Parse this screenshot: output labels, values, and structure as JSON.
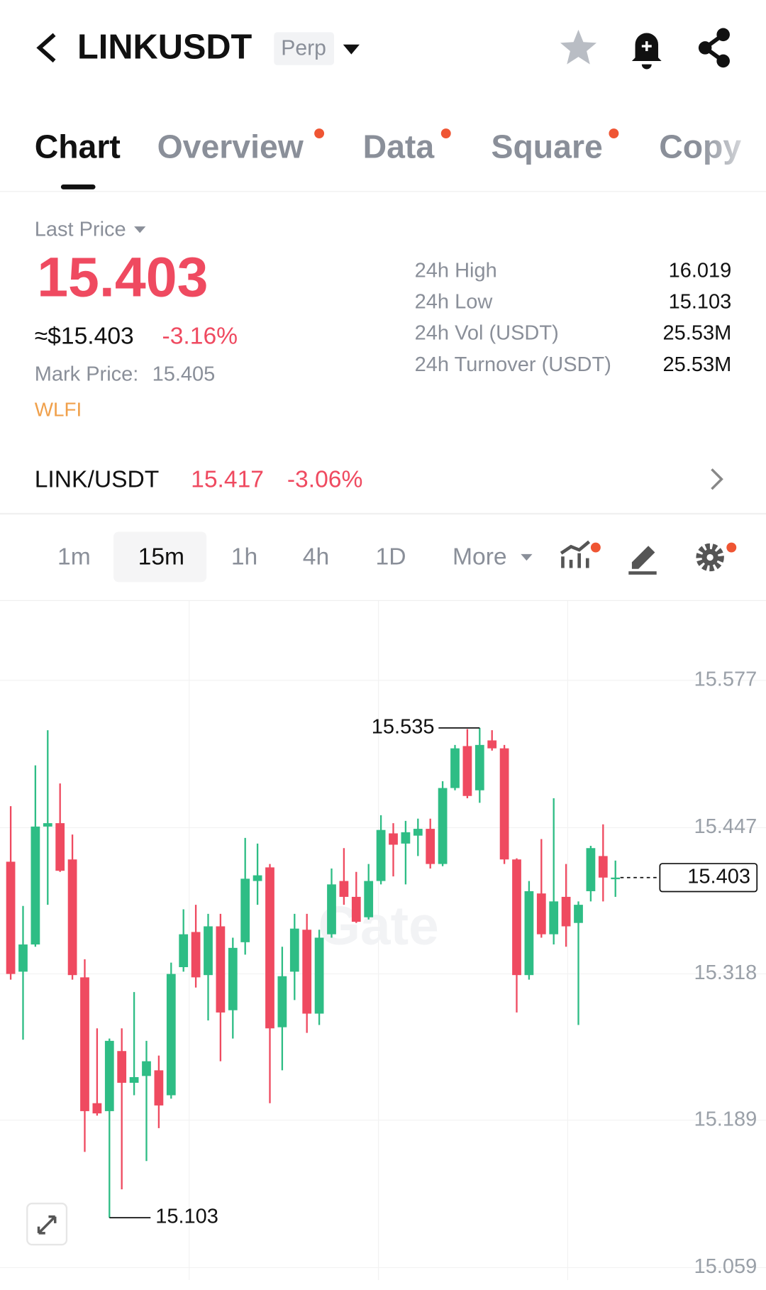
{
  "header": {
    "title": "LINKUSDT",
    "badge": "Perp"
  },
  "tabs": [
    "Chart",
    "Overview",
    "Data",
    "Square",
    "Copy"
  ],
  "price": {
    "label": "Last Price",
    "last": "15.403",
    "usd": "≈$15.403",
    "change": "-3.16%",
    "mark_label": "Mark Price:",
    "mark_value": "15.405",
    "tag": "WLFI"
  },
  "stats": [
    {
      "label": "24h High",
      "value": "16.019"
    },
    {
      "label": "24h Low",
      "value": "15.103"
    },
    {
      "label": "24h Vol (USDT)",
      "value": "25.53M"
    },
    {
      "label": "24h Turnover (USDT)",
      "value": "25.53M"
    }
  ],
  "spot": {
    "pair": "LINK/USDT",
    "price": "15.417",
    "change": "-3.06%"
  },
  "intervals": [
    "1m",
    "15m",
    "1h",
    "4h",
    "1D",
    "More"
  ],
  "chart_data": {
    "type": "candlestick",
    "watermark": "Gate",
    "open": [
      15.417,
      15.32,
      15.344,
      15.448,
      15.451,
      15.419,
      15.315,
      15.204,
      15.197,
      15.25,
      15.222,
      15.228,
      15.233,
      15.211,
      15.324,
      15.355,
      15.317,
      15.36,
      15.286,
      15.346,
      15.4,
      15.412,
      15.271,
      15.32,
      15.357,
      15.283,
      15.353,
      15.4,
      15.386,
      15.368,
      15.4,
      15.442,
      15.433,
      15.44,
      15.446,
      15.415,
      15.482,
      15.519,
      15.48,
      15.524,
      15.517,
      15.419,
      15.317,
      15.389,
      15.353,
      15.386,
      15.363,
      15.391,
      15.422,
      15.402
    ],
    "high": [
      15.466,
      15.378,
      15.502,
      15.533,
      15.486,
      15.441,
      15.331,
      15.27,
      15.261,
      15.27,
      15.302,
      15.259,
      15.246,
      15.328,
      15.375,
      15.379,
      15.371,
      15.371,
      15.35,
      15.438,
      15.433,
      15.415,
      15.342,
      15.371,
      15.371,
      15.357,
      15.411,
      15.429,
      15.408,
      15.415,
      15.458,
      15.451,
      15.453,
      15.455,
      15.455,
      15.488,
      15.52,
      15.534,
      15.535,
      15.533,
      15.52,
      15.42,
      15.4,
      15.437,
      15.473,
      15.415,
      15.382,
      15.431,
      15.45,
      15.418
    ],
    "low": [
      15.313,
      15.26,
      15.342,
      15.379,
      15.408,
      15.313,
      15.161,
      15.193,
      15.103,
      15.128,
      15.211,
      15.153,
      15.182,
      15.208,
      15.32,
      15.306,
      15.277,
      15.241,
      15.261,
      15.335,
      15.379,
      15.204,
      15.233,
      15.295,
      15.266,
      15.273,
      15.35,
      15.379,
      15.363,
      15.366,
      15.397,
      15.404,
      15.397,
      15.422,
      15.411,
      15.413,
      15.48,
      15.473,
      15.469,
      15.515,
      15.415,
      15.284,
      15.313,
      15.35,
      15.344,
      15.342,
      15.273,
      15.382,
      15.382,
      15.386
    ],
    "close": [
      15.318,
      15.344,
      15.448,
      15.451,
      15.409,
      15.317,
      15.197,
      15.195,
      15.259,
      15.222,
      15.227,
      15.241,
      15.202,
      15.318,
      15.353,
      15.315,
      15.36,
      15.284,
      15.341,
      15.402,
      15.405,
      15.27,
      15.316,
      15.358,
      15.283,
      15.35,
      15.397,
      15.386,
      15.364,
      15.4,
      15.445,
      15.432,
      15.443,
      15.446,
      15.415,
      15.482,
      15.517,
      15.475,
      15.52,
      15.517,
      15.419,
      15.317,
      15.391,
      15.353,
      15.382,
      15.36,
      15.379,
      15.429,
      15.403,
      15.403
    ],
    "up_color": "#2ebd85",
    "down_color": "#ef4a60",
    "ylim": [
      15.048,
      15.647
    ],
    "yticks": [
      15.577,
      15.447,
      15.318,
      15.189,
      15.059
    ],
    "grid": true
  }
}
